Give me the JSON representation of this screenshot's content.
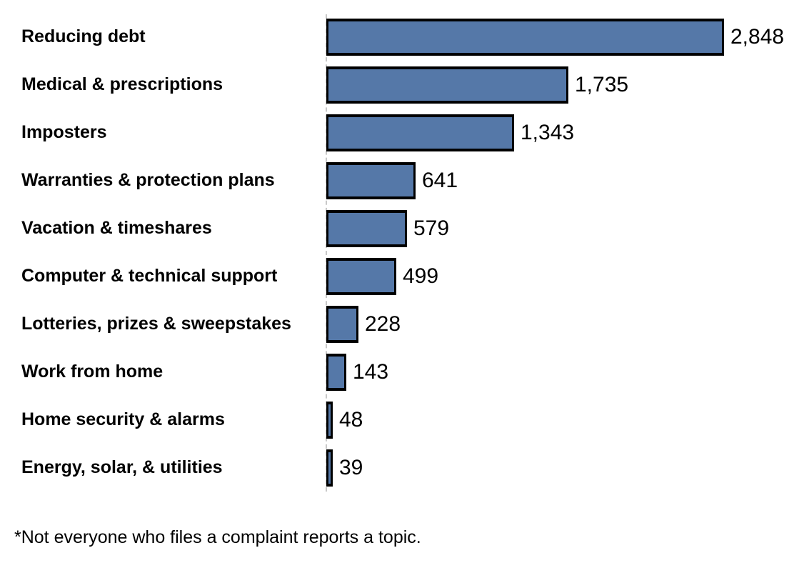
{
  "chart_data": {
    "type": "bar",
    "orientation": "horizontal",
    "title": "",
    "xlabel": "",
    "ylabel": "",
    "categories": [
      "Reducing debt",
      "Medical & prescriptions",
      "Imposters",
      "Warranties & protection plans",
      "Vacation & timeshares",
      "Computer & technical support",
      "Lotteries, prizes & sweepstakes",
      "Work from home",
      "Home security & alarms",
      "Energy, solar, & utilities"
    ],
    "values": [
      2848,
      1735,
      1343,
      641,
      579,
      499,
      228,
      143,
      48,
      39
    ],
    "value_labels": [
      "2,848",
      "1,735",
      "1,343",
      "641",
      "579",
      "499",
      "228",
      "143",
      "48",
      "39"
    ],
    "xlim": [
      0,
      2848
    ],
    "grid": false,
    "legend": false,
    "bar_color": "#5578a8",
    "bar_border_color": "#000000",
    "axis_line_color": "#c8c8c8"
  },
  "footnote": "*Not everyone who files a complaint reports a topic."
}
